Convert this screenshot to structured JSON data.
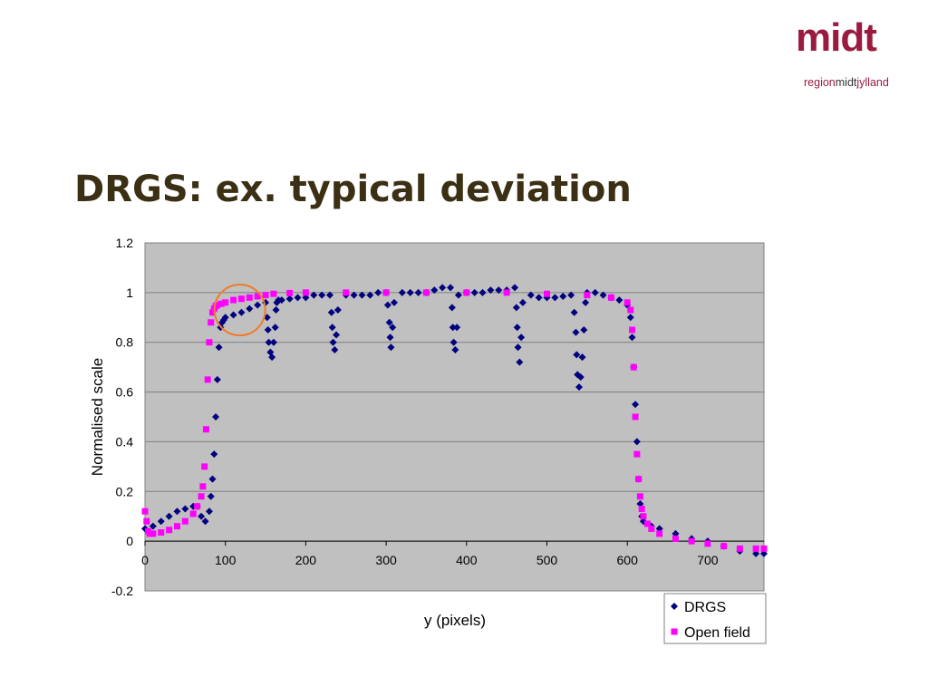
{
  "logo": {
    "wordmark": "midt",
    "sub_prefix": "region",
    "sub_mid": "midt",
    "sub_suffix": "jylland",
    "color": "#9b1b40"
  },
  "slide": {
    "title": "DRGS: ex. typical deviation"
  },
  "chart_data": {
    "type": "scatter",
    "title": "",
    "xlabel": "y (pixels)",
    "ylabel": "Normalised scale",
    "xlim": [
      0,
      770
    ],
    "ylim": [
      -0.2,
      1.2
    ],
    "xticks": [
      0,
      100,
      200,
      300,
      400,
      500,
      600,
      700
    ],
    "yticks": [
      -0.2,
      0,
      0.2,
      0.4,
      0.6,
      0.8,
      1,
      1.2
    ],
    "xtick_labels": [
      "0",
      "100",
      "200",
      "300",
      "400",
      "500",
      "600",
      "700"
    ],
    "ytick_labels": [
      "-0.2",
      "0",
      "0.2",
      "0.4",
      "0.6",
      "0.8",
      "1",
      "1.2"
    ],
    "grid": "horizontal",
    "plot_background": "#c0c0c0",
    "legend_position": "bottom-right",
    "annotation": {
      "shape": "circle",
      "color": "#f07c28",
      "x": 118,
      "y": 0.93
    },
    "series": [
      {
        "name": "DRGS",
        "marker": "diamond",
        "color": "#000080",
        "x": [
          0,
          10,
          20,
          30,
          40,
          50,
          60,
          65,
          70,
          75,
          80,
          82,
          84,
          86,
          88,
          90,
          92,
          94,
          96,
          98,
          100,
          110,
          120,
          130,
          140,
          150,
          152,
          153,
          154,
          156,
          158,
          160,
          162,
          163,
          164,
          166,
          170,
          180,
          190,
          200,
          210,
          220,
          230,
          232,
          233,
          234,
          236,
          238,
          240,
          250,
          260,
          270,
          280,
          290,
          300,
          302,
          304,
          305,
          306,
          308,
          310,
          320,
          330,
          340,
          350,
          360,
          370,
          380,
          382,
          383,
          384,
          386,
          388,
          390,
          400,
          410,
          420,
          430,
          440,
          450,
          460,
          462,
          463,
          464,
          466,
          468,
          470,
          480,
          490,
          500,
          510,
          520,
          530,
          534,
          536,
          537,
          538,
          540,
          542,
          544,
          546,
          548,
          550,
          560,
          570,
          580,
          590,
          600,
          604,
          606,
          608,
          610,
          612,
          614,
          616,
          618,
          620,
          630,
          640,
          660,
          680,
          700,
          720,
          740,
          760,
          770
        ],
        "y": [
          0.05,
          0.06,
          0.08,
          0.1,
          0.12,
          0.13,
          0.14,
          0.14,
          0.1,
          0.08,
          0.12,
          0.18,
          0.25,
          0.35,
          0.5,
          0.65,
          0.78,
          0.86,
          0.88,
          0.89,
          0.9,
          0.91,
          0.92,
          0.935,
          0.95,
          0.96,
          0.9,
          0.85,
          0.8,
          0.76,
          0.74,
          0.8,
          0.86,
          0.93,
          0.96,
          0.97,
          0.97,
          0.975,
          0.98,
          0.98,
          0.99,
          0.99,
          0.99,
          0.92,
          0.86,
          0.8,
          0.77,
          0.83,
          0.93,
          0.99,
          0.99,
          0.99,
          0.99,
          1.0,
          1.0,
          0.95,
          0.88,
          0.82,
          0.78,
          0.86,
          0.96,
          1.0,
          1.0,
          1.0,
          1.0,
          1.01,
          1.02,
          1.02,
          0.94,
          0.86,
          0.8,
          0.77,
          0.86,
          0.99,
          1.0,
          1.0,
          1.0,
          1.01,
          1.01,
          1.01,
          1.02,
          0.94,
          0.86,
          0.78,
          0.72,
          0.82,
          0.96,
          0.99,
          0.98,
          0.98,
          0.98,
          0.985,
          0.99,
          0.92,
          0.84,
          0.75,
          0.67,
          0.62,
          0.66,
          0.74,
          0.85,
          0.96,
          1.0,
          1.0,
          0.99,
          0.98,
          0.97,
          0.95,
          0.9,
          0.82,
          0.7,
          0.55,
          0.4,
          0.25,
          0.15,
          0.1,
          0.08,
          0.06,
          0.05,
          0.03,
          0.01,
          0.0,
          -0.02,
          -0.04,
          -0.05,
          -0.05
        ]
      },
      {
        "name": "Open field",
        "marker": "square",
        "color": "#ff00ff",
        "x": [
          0,
          2,
          4,
          6,
          10,
          20,
          30,
          40,
          50,
          60,
          65,
          70,
          72,
          74,
          76,
          78,
          80,
          82,
          84,
          86,
          88,
          90,
          95,
          100,
          110,
          120,
          130,
          140,
          150,
          160,
          180,
          200,
          250,
          300,
          350,
          400,
          450,
          500,
          550,
          580,
          600,
          604,
          606,
          608,
          610,
          612,
          614,
          616,
          618,
          620,
          625,
          630,
          640,
          660,
          680,
          700,
          720,
          740,
          760,
          770
        ],
        "y": [
          0.12,
          0.08,
          0.04,
          0.03,
          0.03,
          0.035,
          0.045,
          0.06,
          0.08,
          0.11,
          0.14,
          0.18,
          0.22,
          0.3,
          0.45,
          0.65,
          0.8,
          0.88,
          0.92,
          0.935,
          0.945,
          0.95,
          0.955,
          0.96,
          0.97,
          0.975,
          0.98,
          0.985,
          0.99,
          0.995,
          0.998,
          1.0,
          1.0,
          1.0,
          1.0,
          1.0,
          1.0,
          0.995,
          0.99,
          0.98,
          0.96,
          0.93,
          0.85,
          0.7,
          0.5,
          0.35,
          0.25,
          0.18,
          0.13,
          0.1,
          0.07,
          0.05,
          0.03,
          0.01,
          0.0,
          -0.01,
          -0.02,
          -0.03,
          -0.03,
          -0.03
        ]
      }
    ]
  }
}
